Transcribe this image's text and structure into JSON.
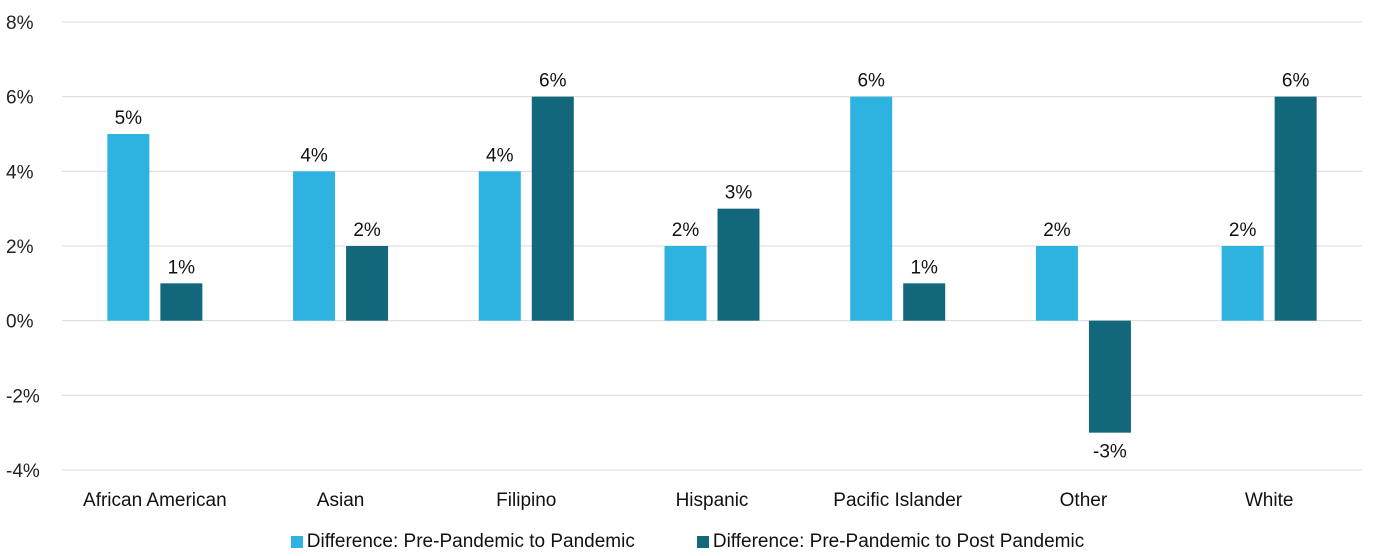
{
  "chart_data": {
    "type": "bar",
    "categories": [
      "African American",
      "Asian",
      "Filipino",
      "Hispanic",
      "Pacific Islander",
      "Other",
      "White"
    ],
    "series": [
      {
        "name": "Difference: Pre-Pandemic to Pandemic",
        "color": "#2eb3e0",
        "values": [
          5,
          4,
          4,
          2,
          6,
          2,
          2
        ],
        "labels": [
          "5%",
          "4%",
          "4%",
          "2%",
          "6%",
          "2%",
          "2%"
        ]
      },
      {
        "name": "Difference: Pre-Pandemic to Post Pandemic",
        "color": "#12687a",
        "values": [
          1,
          2,
          6,
          3,
          1,
          -3,
          6
        ],
        "labels": [
          "1%",
          "2%",
          "6%",
          "3%",
          "1%",
          "-3%",
          "6%"
        ]
      }
    ],
    "yticks": [
      8,
      6,
      4,
      2,
      0,
      -2,
      -4
    ],
    "ytick_labels": [
      "8%",
      "6%",
      "4%",
      "2%",
      "0%",
      "-2%",
      "-4%"
    ],
    "ylim": [
      -4,
      8
    ],
    "grid": true,
    "legend_position": "bottom"
  }
}
